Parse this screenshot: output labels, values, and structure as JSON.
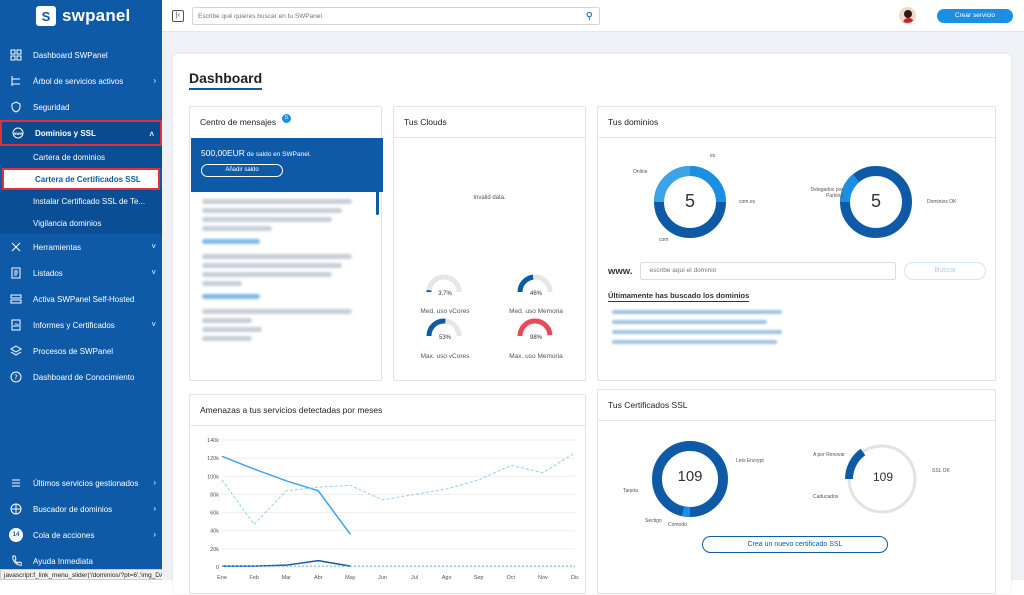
{
  "app": {
    "logo_text": "swpanel",
    "logo_mark": "S"
  },
  "topbar": {
    "search_placeholder": "Escribe qué quieres buscar en tu SWPanel",
    "create_button": "Crear servicio"
  },
  "sidebar": {
    "items": [
      {
        "label": "Dashboard SWPanel",
        "icon": "grid-icon"
      },
      {
        "label": "Árbol de servicios activos",
        "icon": "tree-icon"
      },
      {
        "label": "Seguridad",
        "icon": "shield-icon"
      },
      {
        "label": "Dominios y SSL",
        "icon": "www-icon"
      },
      {
        "label": "Herramientas",
        "icon": "tools-icon"
      },
      {
        "label": "Listados",
        "icon": "document-icon"
      },
      {
        "label": "Activa SWPanel Self-Hosted",
        "icon": "server-icon"
      },
      {
        "label": "Informes y Certificados",
        "icon": "report-icon"
      },
      {
        "label": "Procesos de SWPanel",
        "icon": "layers-icon"
      },
      {
        "label": "Dashboard de Conocimiento",
        "icon": "question-icon"
      }
    ],
    "subitems": [
      "Cartera de dominios",
      "Cartera de Certificados SSL",
      "Instalar Certificado SSL de Te...",
      "Vigilancia dominios"
    ],
    "bottom_items": [
      {
        "label": "Últimos servicios gestionados",
        "icon": "list-icon"
      },
      {
        "label": "Buscador de dominios",
        "icon": "globe-icon"
      },
      {
        "label": "Cola de acciones",
        "icon": "queue-icon",
        "count": "14"
      },
      {
        "label": "Ayuda Inmediata",
        "icon": "phone-icon"
      }
    ]
  },
  "status_bar": "javascript:f_link_menu_slider('/dominios/?pt=6','img_DAPTCnXjauMG','5','');",
  "dashboard": {
    "title": "Dashboard",
    "messages": {
      "title": "Centro de mensajes",
      "badge": "5",
      "balance": "500,00EUR",
      "balance_suffix": " de saldo en SWPanel.",
      "add_button": "Añadir saldo"
    },
    "clouds": {
      "title": "Tus Clouds",
      "invalid": "Invalid data.",
      "gauges": [
        {
          "label": "Med. uso vCores",
          "value": "3,7%",
          "fraction": 0.037,
          "color": "#0e5aa7"
        },
        {
          "label": "Med. uso Memoria",
          "value": "46%",
          "fraction": 0.46,
          "color": "#0e5aa7"
        },
        {
          "label": "Max. uso vCores",
          "value": "53%",
          "fraction": 0.53,
          "color": "#0e5aa7"
        },
        {
          "label": "Max. uso Memoria",
          "value": "98%",
          "fraction": 0.98,
          "color": "#e84a5a"
        }
      ]
    },
    "domains": {
      "title": "Tus dominios",
      "count_a": "5",
      "count_b": "5",
      "labels_a": [
        "Online",
        "es",
        "com.es",
        "com"
      ],
      "labels_b": [
        "Delegados por Parking",
        "Dominios OK"
      ],
      "www": "www.",
      "input_placeholder": "escribe aquí el dominio",
      "search_button": "Buscar",
      "recent_title": "Últimamente has buscado los dominios"
    },
    "threats": {
      "title": "Amenazas a tus servicios detectadas por meses",
      "y_ticks": [
        "140k",
        "120k",
        "100k",
        "80k",
        "60k",
        "40k",
        "20k",
        "0"
      ],
      "x_ticks": [
        "Ene",
        "Feb",
        "Mar",
        "Abr",
        "May",
        "Jun",
        "Jul",
        "Ago",
        "Sep",
        "Oct",
        "Nov",
        "Dic"
      ]
    },
    "ssl": {
      "title": "Tus Certificados SSL",
      "count_a": "109",
      "count_b": "109",
      "labels_a": [
        "Lets Encrypt",
        "Tarjeta",
        "Sectigo",
        "Comodo"
      ],
      "labels_b": [
        "A por Renovar",
        "SSL OK",
        "Caducados"
      ],
      "create_button": "Crea un nuevo certificado SSL"
    }
  }
}
